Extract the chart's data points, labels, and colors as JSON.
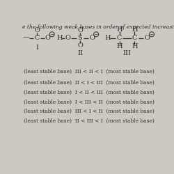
{
  "title_text": "e the following weak bases in order of expected increasing stabili",
  "background_color": "#cdc9c2",
  "text_color": "#2a2a2a",
  "options": [
    "least stable base)  III < II < I  (most stable base)",
    "least stable base)  II < I < III  (most stable base)",
    "least stable base)  I < II < III  (most stable base)",
    "least stable base)  I < III < II  (most stable base)",
    "least stable base)  III < I < II  (most stable base)",
    "least stable base)  II < III < I  (most stable base)"
  ],
  "struct_labels": [
    "I",
    "II",
    "III"
  ],
  "figsize": [
    2.5,
    2.5
  ],
  "dpi": 100
}
